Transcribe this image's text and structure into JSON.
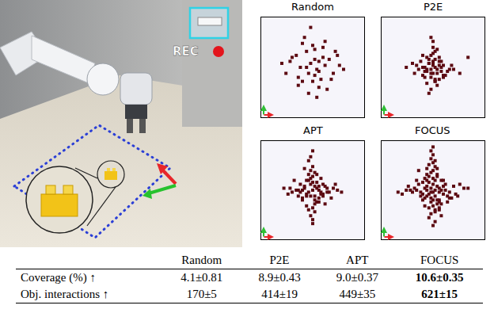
{
  "photo": {
    "overlay_text": "REC"
  },
  "chart_data": [
    {
      "type": "scatter",
      "title": "Random",
      "color": "#5c0a12",
      "marker": "square",
      "xlim": [
        0,
        50
      ],
      "ylim": [
        0,
        50
      ],
      "tick_labels": false,
      "x": [
        22,
        30,
        18,
        26,
        35,
        14,
        28,
        24,
        31,
        20,
        17,
        27,
        33,
        23,
        38,
        12,
        25,
        29,
        21,
        36,
        19,
        26,
        32,
        15,
        28,
        24,
        40,
        22,
        34,
        27,
        10,
        30,
        23,
        18,
        26,
        31,
        25,
        37,
        20,
        28
      ],
      "values": [
        25,
        30,
        20,
        34,
        22,
        28,
        15,
        27,
        38,
        18,
        31,
        24,
        29,
        12,
        26,
        22,
        36,
        19,
        40,
        33,
        25,
        21,
        14,
        30,
        28,
        45,
        24,
        33,
        19,
        10,
        27,
        35,
        22,
        16,
        29,
        26,
        18,
        31,
        37,
        23
      ]
    },
    {
      "type": "scatter",
      "title": "P2E",
      "color": "#5c0a12",
      "marker": "square",
      "xlim": [
        0,
        50
      ],
      "ylim": [
        0,
        50
      ],
      "tick_labels": false,
      "x": [
        24,
        26,
        22,
        28,
        25,
        23,
        27,
        21,
        29,
        25,
        20,
        30,
        24,
        26,
        18,
        32,
        22,
        28,
        25,
        27,
        23,
        19,
        31,
        24,
        26,
        21,
        29,
        17,
        33,
        25,
        22,
        28,
        24,
        26,
        20,
        30,
        23,
        27,
        15,
        35,
        25,
        24,
        26,
        22,
        28,
        12,
        38,
        25,
        21,
        29,
        23,
        27,
        16,
        34,
        24,
        26,
        20,
        30,
        25,
        42
      ],
      "values": [
        24,
        25,
        23,
        26,
        22,
        27,
        24,
        25,
        23,
        28,
        21,
        26,
        20,
        29,
        24,
        23,
        30,
        19,
        26,
        22,
        27,
        28,
        21,
        31,
        18,
        23,
        25,
        26,
        24,
        32,
        17,
        28,
        22,
        33,
        25,
        20,
        29,
        16,
        27,
        24,
        35,
        14,
        19,
        24,
        30,
        25,
        22,
        38,
        20,
        28,
        12,
        34,
        22,
        26,
        40,
        18,
        31,
        21,
        27,
        30
      ]
    },
    {
      "type": "scatter",
      "title": "APT",
      "color": "#5c0a12",
      "marker": "square",
      "xlim": [
        0,
        50
      ],
      "ylim": [
        0,
        50
      ],
      "tick_labels": false,
      "x": [
        25,
        23,
        27,
        24,
        26,
        22,
        28,
        21,
        29,
        25,
        20,
        30,
        24,
        26,
        18,
        32,
        23,
        27,
        19,
        31,
        25,
        22,
        28,
        24,
        26,
        17,
        33,
        21,
        29,
        25,
        23,
        27,
        15,
        35,
        24,
        26,
        20,
        30,
        22,
        28,
        25,
        13,
        37,
        24,
        26,
        19,
        31,
        23,
        27,
        11,
        39,
        25,
        22,
        28,
        16,
        34,
        24,
        26,
        20,
        30,
        25,
        23,
        27,
        14,
        36,
        21,
        29,
        25,
        18,
        32
      ],
      "values": [
        25,
        24,
        26,
        22,
        27,
        23,
        25,
        26,
        24,
        29,
        21,
        23,
        28,
        20,
        25,
        26,
        30,
        19,
        24,
        27,
        32,
        22,
        21,
        31,
        18,
        25,
        24,
        27,
        23,
        16,
        33,
        29,
        24,
        26,
        35,
        14,
        20,
        28,
        30,
        19,
        37,
        23,
        25,
        12,
        22,
        28,
        18,
        40,
        33,
        26,
        24,
        10,
        17,
        27,
        30,
        21,
        42,
        34,
        25,
        22,
        45,
        15,
        19,
        26,
        28,
        36,
        31,
        8,
        22,
        24
      ]
    },
    {
      "type": "scatter",
      "title": "FOCUS",
      "color": "#5c0a12",
      "marker": "square",
      "xlim": [
        0,
        50
      ],
      "ylim": [
        0,
        50
      ],
      "tick_labels": false,
      "x": [
        25,
        24,
        26,
        23,
        27,
        22,
        28,
        25,
        24,
        26,
        21,
        29,
        23,
        27,
        20,
        30,
        25,
        24,
        26,
        22,
        28,
        19,
        31,
        23,
        27,
        25,
        18,
        32,
        24,
        26,
        21,
        29,
        22,
        28,
        17,
        33,
        25,
        23,
        27,
        20,
        30,
        24,
        26,
        16,
        34,
        22,
        28,
        25,
        19,
        31,
        23,
        27,
        15,
        35,
        24,
        26,
        21,
        29,
        14,
        36,
        25,
        22,
        28,
        13,
        37,
        20,
        30,
        24,
        26,
        18,
        32,
        12,
        38,
        25,
        23,
        27,
        10,
        40,
        21,
        29,
        24,
        26,
        17,
        33,
        25,
        42,
        8,
        22,
        28,
        25
      ],
      "values": [
        24,
        26,
        25,
        23,
        27,
        25,
        24,
        28,
        21,
        22,
        26,
        25,
        29,
        20,
        23,
        27,
        31,
        19,
        30,
        22,
        26,
        24,
        25,
        32,
        18,
        17,
        28,
        22,
        34,
        15,
        21,
        30,
        27,
        20,
        25,
        24,
        35,
        16,
        33,
        29,
        23,
        13,
        37,
        26,
        21,
        30,
        19,
        39,
        22,
        28,
        11,
        36,
        24,
        27,
        41,
        9,
        31,
        18,
        25,
        23,
        43,
        33,
        16,
        27,
        22,
        20,
        30,
        24,
        14,
        35,
        19,
        25,
        28,
        7,
        38,
        32,
        23,
        26,
        17,
        12,
        45,
        40,
        30,
        21,
        20,
        26,
        24,
        36,
        15,
        47
      ]
    }
  ],
  "table": {
    "columns": [
      "Random",
      "P2E",
      "APT",
      "FOCUS"
    ],
    "rows": [
      {
        "label": "Coverage (%) ↑",
        "cells": [
          {
            "text": "4.1±0.81"
          },
          {
            "text": "8.9±0.43"
          },
          {
            "text": "9.0±0.37"
          },
          {
            "text": "10.6±0.35",
            "bold": true
          }
        ]
      },
      {
        "label": "Obj. interactions ↑",
        "cells": [
          {
            "text": "170±5"
          },
          {
            "text": "414±19"
          },
          {
            "text": "449±35"
          },
          {
            "text": "621±15",
            "bold": true
          }
        ]
      }
    ]
  }
}
